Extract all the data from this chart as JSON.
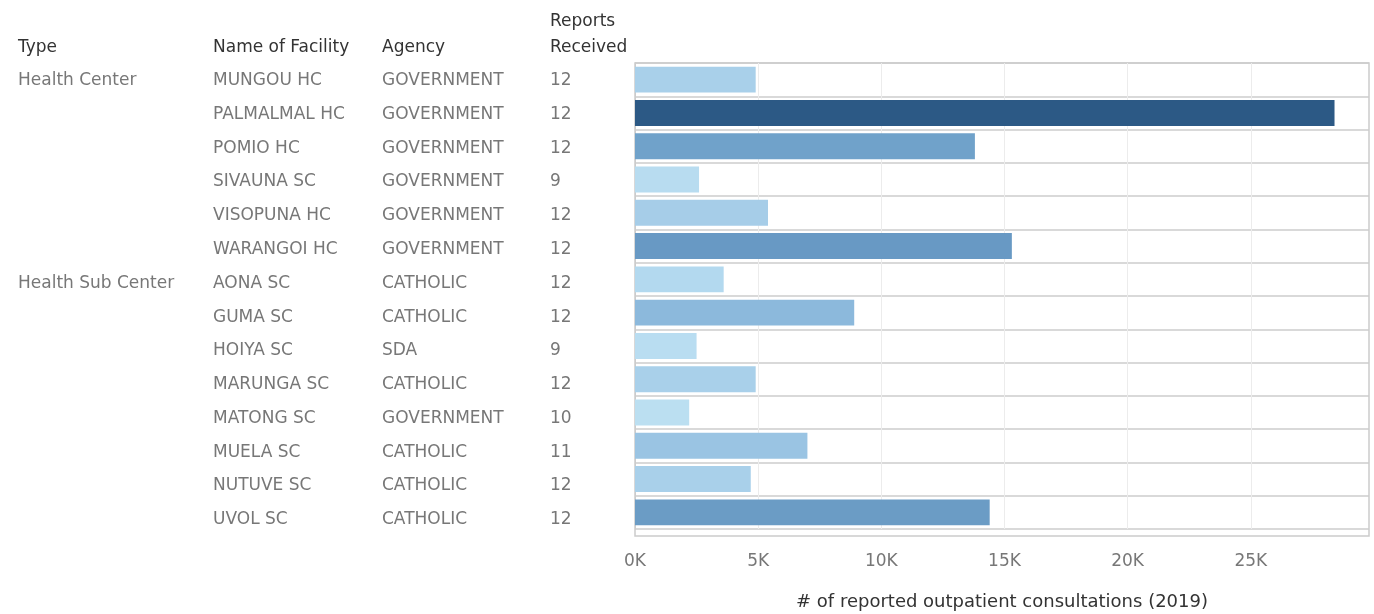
{
  "chart_data": [
    {
      "type": "other",
      "title": "Type",
      "categories": [
        "Health Center",
        null,
        null,
        null,
        null,
        null,
        "Health Sub Center",
        null,
        null,
        null,
        null,
        null,
        null,
        null
      ]
    },
    {
      "type": "other",
      "title": "Name of Facility",
      "categories": [
        "MUNGOU HC",
        "PALMALMAL HC",
        "POMIO HC",
        "SIVAUNA SC",
        "VISOPUNA HC",
        "WARANGOI HC",
        "AONA SC",
        "GUMA SC",
        "HOIYA SC",
        "MARUNGA SC",
        "MATONG SC",
        "MUELA SC",
        "NUTUVE SC",
        "UVOL SC"
      ]
    },
    {
      "type": "other",
      "title": "Agency",
      "categories": [
        "GOVERNMENT",
        "GOVERNMENT",
        "GOVERNMENT",
        "GOVERNMENT",
        "GOVERNMENT",
        "GOVERNMENT",
        "CATHOLIC",
        "CATHOLIC",
        "SDA",
        "CATHOLIC",
        "GOVERNMENT",
        "CATHOLIC",
        "CATHOLIC",
        "CATHOLIC"
      ]
    },
    {
      "type": "other",
      "title": "Reports Received",
      "categories": [
        "12",
        "12",
        "12",
        "9",
        "12",
        "12",
        "12",
        "12",
        "9",
        "12",
        "10",
        "11",
        "12",
        "12"
      ]
    },
    {
      "type": "bar",
      "orientation": "horizontal",
      "xlabel": "# of reported outpatient consultations (2019)",
      "categories": [
        null,
        null,
        null,
        null,
        null,
        null,
        null,
        null,
        null,
        null,
        null,
        null,
        null,
        null
      ],
      "values": [
        4900,
        28400,
        13800,
        2600,
        5400,
        15300,
        3600,
        8900,
        2500,
        4900,
        2200,
        7000,
        4700,
        14400
      ],
      "colors": [
        "#a9d0ea",
        "#2c5985",
        "#70a2ca",
        "#b8dcf0",
        "#a6cde8",
        "#6899c4",
        "#b3d9ef",
        "#8cb9dc",
        "#b9ddf1",
        "#a9d0ea",
        "#bbdff1",
        "#9ac4e3",
        "#a9d0ea",
        "#6b9cc5"
      ],
      "xlim": [
        0,
        29800
      ],
      "xticks": [
        {
          "value": 0,
          "label": "0K"
        },
        {
          "value": 5000,
          "label": "5K"
        },
        {
          "value": 10000,
          "label": "10K"
        },
        {
          "value": 15000,
          "label": "15K"
        },
        {
          "value": 20000,
          "label": "20K"
        },
        {
          "value": 25000,
          "label": "25K"
        }
      ],
      "grid": true
    }
  ]
}
